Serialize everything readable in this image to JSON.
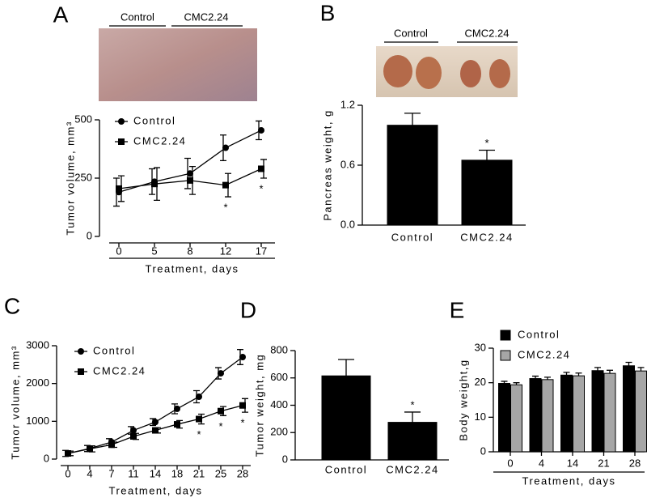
{
  "chart_data": [
    {
      "type": "line",
      "panel_label": "A",
      "photo_labels": [
        "Control",
        "CMC2.24"
      ],
      "xlabel": "Treatment, days",
      "ylabel": "Tumor volume, mm³",
      "categories": [
        "0",
        "5",
        "8",
        "12",
        "17"
      ],
      "series": [
        {
          "name": "Control",
          "color": "#000000",
          "marker": "circle",
          "values": [
            190,
            235,
            270,
            380,
            455
          ],
          "errors": [
            60,
            55,
            65,
            55,
            40
          ],
          "annotations": [
            null,
            null,
            null,
            null,
            null
          ]
        },
        {
          "name": "CMC2.24",
          "color": "#000000",
          "marker": "square",
          "values": [
            205,
            225,
            240,
            220,
            290
          ],
          "errors": [
            55,
            70,
            60,
            50,
            40
          ],
          "annotations": [
            null,
            null,
            null,
            "*",
            "*"
          ]
        }
      ],
      "ylim": [
        0,
        500
      ],
      "yticks": [
        0,
        250,
        500
      ]
    },
    {
      "type": "bar",
      "panel_label": "B",
      "photo_labels": [
        "Control",
        "CMC2.24"
      ],
      "ylabel": "Pancreas weight, g",
      "categories": [
        "Control",
        "CMC2.24"
      ],
      "series": [
        {
          "color": "#000000",
          "values": [
            1.0,
            0.65
          ],
          "errors": [
            0.12,
            0.1
          ],
          "annotations": [
            null,
            "*"
          ]
        }
      ],
      "ylim": [
        0,
        1.2
      ],
      "yticks": [
        {
          "value": 0,
          "label": "0.0"
        },
        0.6,
        1.2
      ]
    },
    {
      "type": "line",
      "panel_label": "C",
      "xlabel": "Treatment, days",
      "ylabel": "Tumor volume, mm³",
      "categories": [
        "0",
        "4",
        "7",
        "11",
        "14",
        "18",
        "21",
        "25",
        "28"
      ],
      "series": [
        {
          "name": "Control",
          "color": "#000000",
          "marker": "circle",
          "values": [
            150,
            280,
            450,
            760,
            980,
            1330,
            1650,
            2270,
            2700
          ],
          "errors": [
            80,
            80,
            90,
            100,
            90,
            130,
            160,
            150,
            200
          ],
          "annotations": [
            null,
            null,
            null,
            null,
            null,
            null,
            null,
            null,
            null
          ]
        },
        {
          "name": "CMC2.24",
          "color": "#000000",
          "marker": "square",
          "values": [
            150,
            270,
            380,
            600,
            760,
            920,
            1060,
            1270,
            1420
          ],
          "errors": [
            60,
            80,
            70,
            80,
            70,
            100,
            130,
            120,
            180
          ],
          "annotations": [
            null,
            null,
            null,
            null,
            null,
            null,
            "*",
            "*",
            "*"
          ]
        }
      ],
      "ylim": [
        0,
        3000
      ],
      "yticks": [
        0,
        1000,
        2000,
        3000
      ]
    },
    {
      "type": "bar",
      "panel_label": "D",
      "ylabel": "Tumor weight, mg",
      "categories": [
        "Control",
        "CMC2.24"
      ],
      "series": [
        {
          "color": "#000000",
          "values": [
            615,
            275
          ],
          "errors": [
            120,
            75
          ],
          "annotations": [
            null,
            "*"
          ]
        }
      ],
      "ylim": [
        0,
        800
      ],
      "yticks": [
        0,
        200,
        400,
        600,
        800
      ]
    },
    {
      "type": "bar",
      "panel_label": "E",
      "xlabel": "Treatment, days",
      "ylabel": "Body weight,g",
      "categories": [
        "0",
        "4",
        "14",
        "21",
        "28"
      ],
      "series": [
        {
          "name": "Control",
          "color": "#000000",
          "values": [
            19.8,
            21.2,
            22.2,
            23.5,
            24.9
          ],
          "errors": [
            0.6,
            0.7,
            0.8,
            0.9,
            1.0
          ],
          "annotations": [
            null,
            null,
            null,
            null,
            null
          ]
        },
        {
          "name": "CMC2.24",
          "color": "#a6a6a6",
          "values": [
            19.4,
            20.9,
            22.0,
            22.7,
            23.4
          ],
          "errors": [
            0.6,
            0.7,
            0.8,
            0.9,
            1.0
          ],
          "annotations": [
            null,
            null,
            null,
            null,
            null
          ]
        }
      ],
      "ylim": [
        0,
        30
      ],
      "yticks": [
        0,
        10,
        20,
        30
      ]
    }
  ]
}
